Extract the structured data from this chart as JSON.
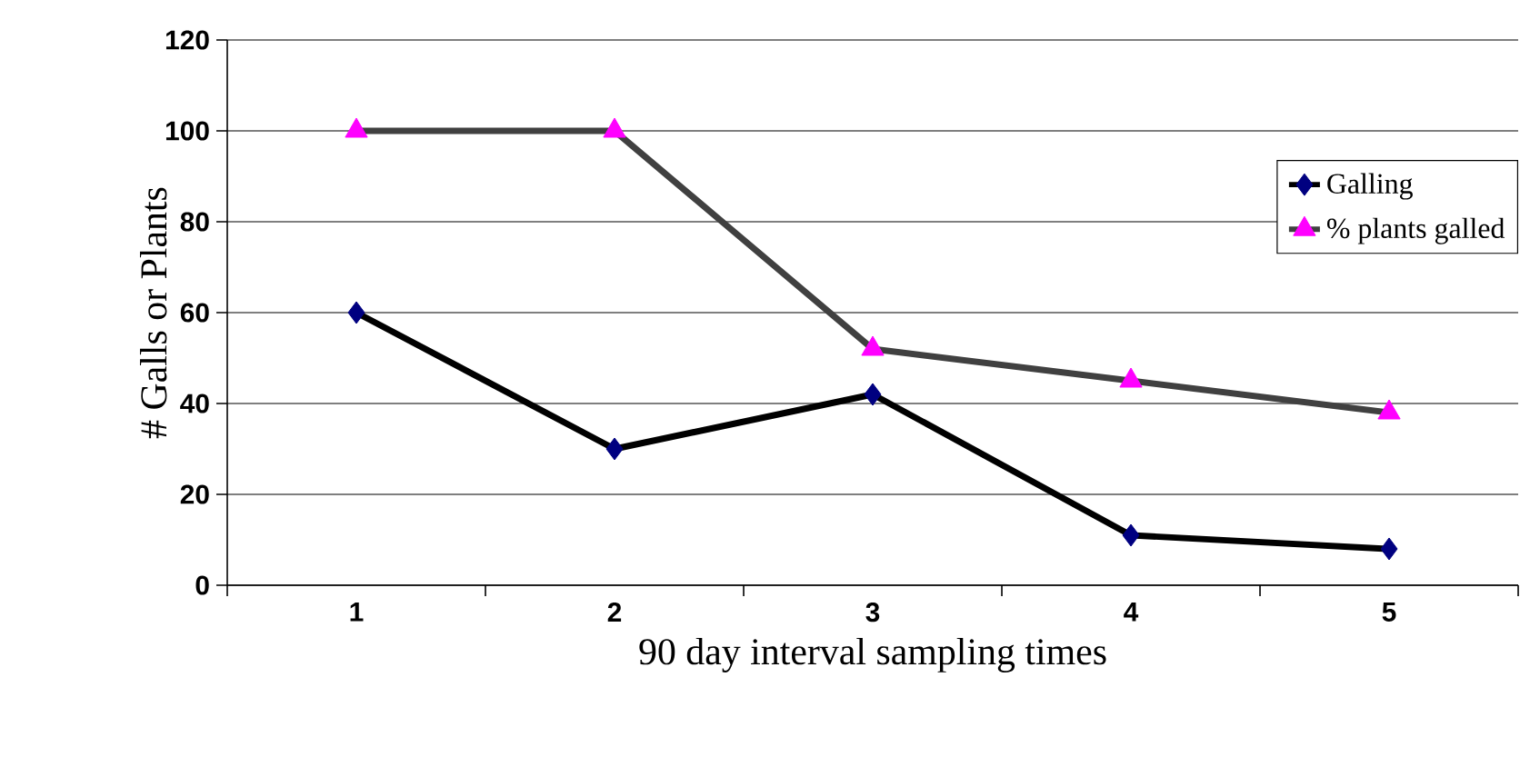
{
  "chart_data": {
    "type": "line",
    "xlabel": "90 day interval sampling times",
    "ylabel": "# Galls or Plants",
    "categories": [
      "1",
      "2",
      "3",
      "4",
      "5"
    ],
    "series": [
      {
        "name": "Galling",
        "color": "#000080",
        "marker": "diamond",
        "values": [
          60,
          30,
          42,
          11,
          8
        ]
      },
      {
        "name": "% plants galled",
        "color": "#ff00ff",
        "marker": "triangle",
        "values": [
          100,
          100,
          52,
          45,
          38
        ]
      }
    ],
    "ylim": [
      0,
      120
    ],
    "yticks": [
      0,
      20,
      40,
      60,
      80,
      100,
      120
    ],
    "grid": "y",
    "legend": "right"
  }
}
